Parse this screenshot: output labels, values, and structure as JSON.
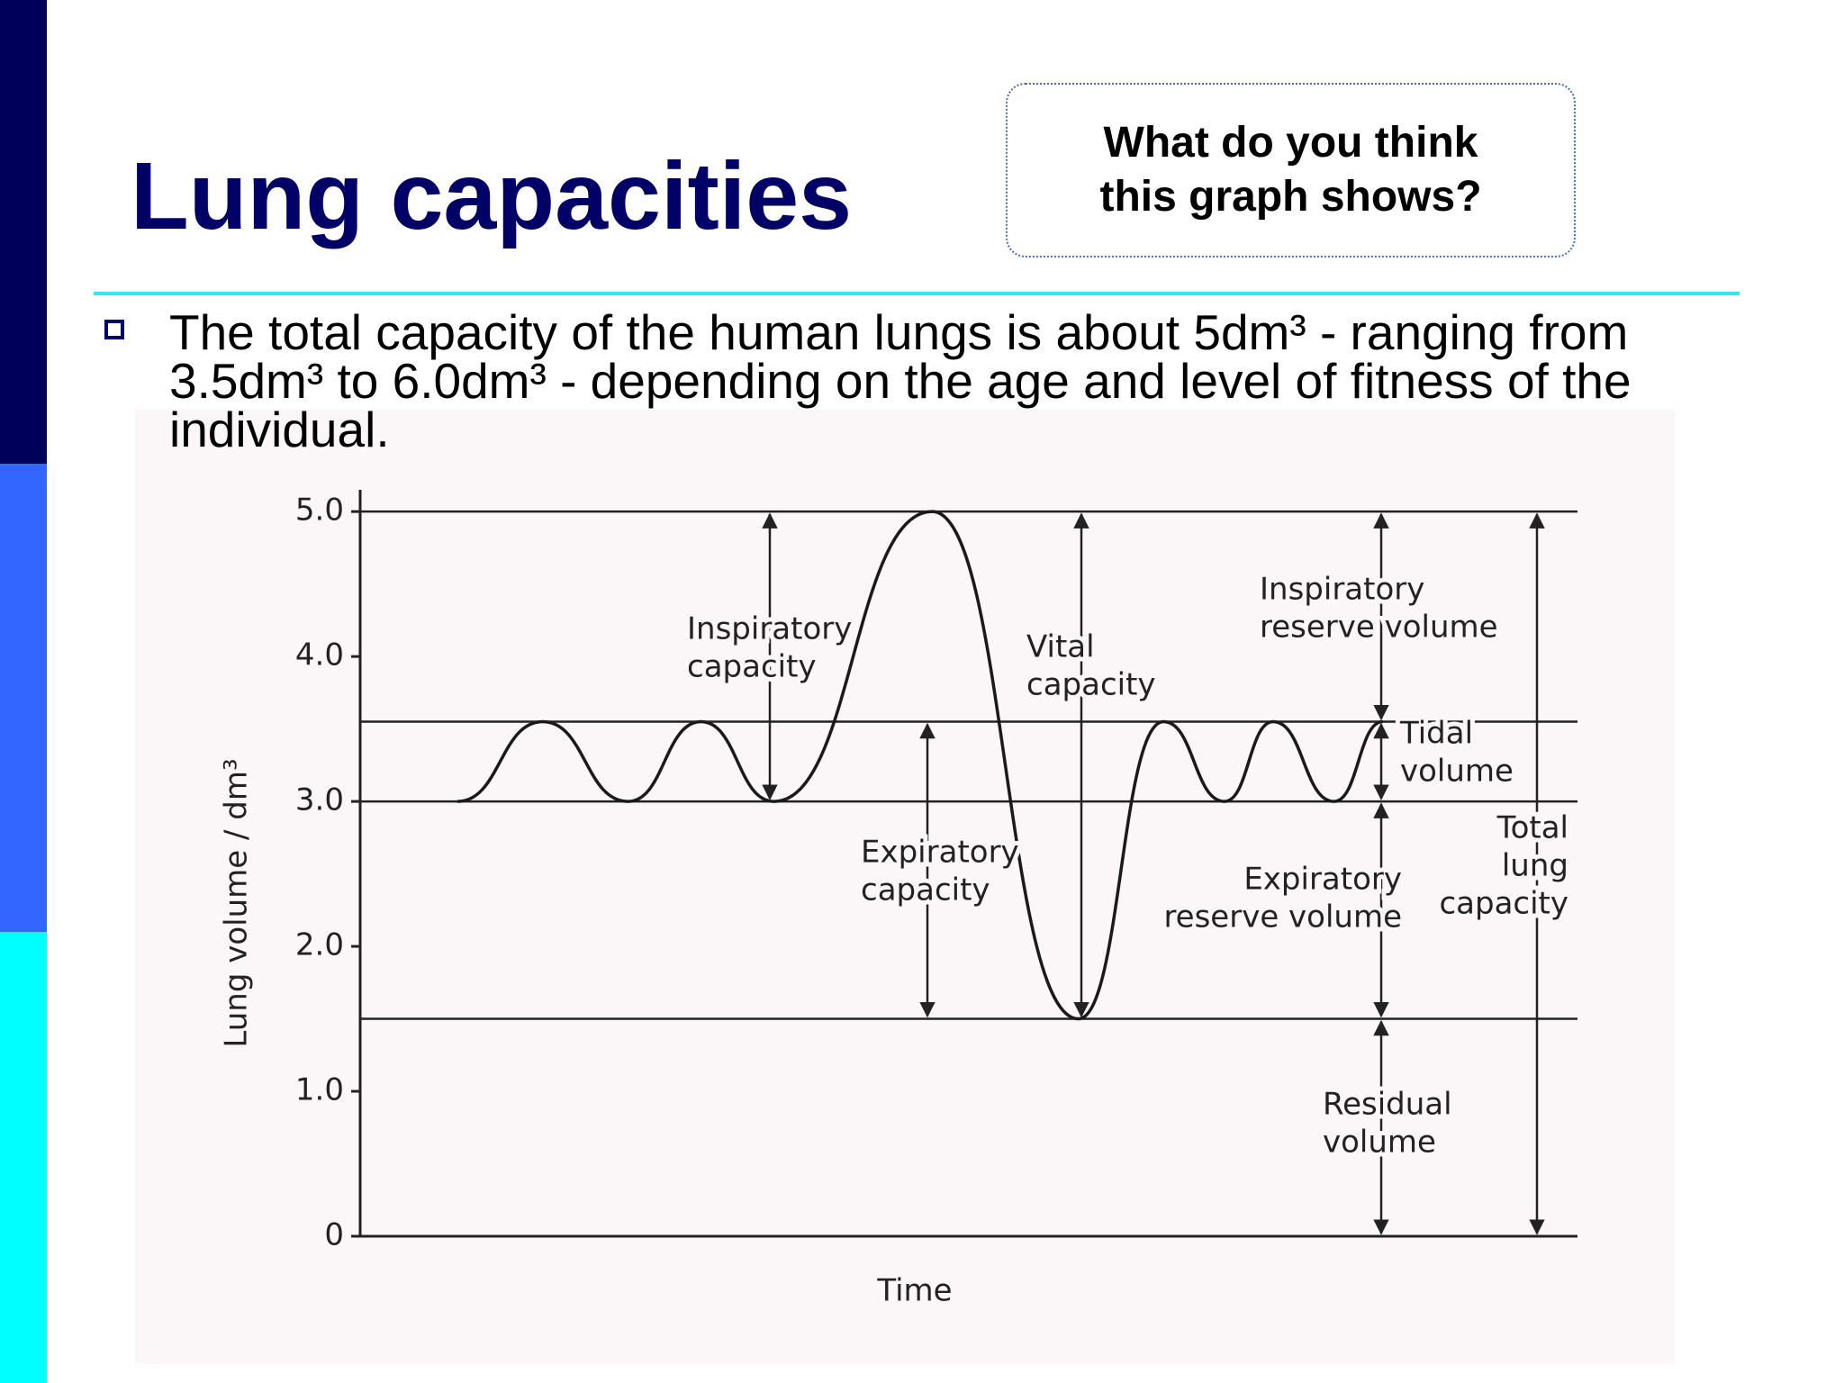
{
  "title": "Lung capacities",
  "callout": [
    "What do you think",
    "this graph shows?"
  ],
  "bullet": [
    "The total capacity of the human lungs is about 5dm³ - ranging from",
    "3.5dm³ to 6.0dm³ - depending on the age and level of fitness of the",
    "individual."
  ],
  "chart_data": {
    "type": "line",
    "x_label": "Time",
    "y_label": "Lung volume / dm³",
    "x": [
      8,
      15,
      22,
      28,
      34,
      47,
      59,
      66,
      71,
      75,
      80,
      84
    ],
    "values": [
      3.0,
      3.55,
      3.0,
      3.55,
      3.0,
      5.0,
      1.5,
      3.55,
      3.0,
      3.55,
      3.0,
      3.55
    ],
    "color": "#1a1a1a",
    "xlim": [
      0,
      100
    ],
    "ylim": [
      0,
      5.15
    ],
    "yticks": [
      {
        "value": 5,
        "label": "5.0"
      },
      {
        "value": 4,
        "label": "4.0"
      },
      {
        "value": 3,
        "label": "3.0"
      },
      {
        "value": 2,
        "label": "2.0"
      },
      {
        "value": 1,
        "label": "1.0"
      },
      0
    ],
    "reference_lines": [
      5.0,
      3.55,
      3.0,
      1.5
    ],
    "annotations": [
      {
        "lines": [
          "Inspiratory",
          "capacity"
        ]
      },
      {
        "lines": [
          "Vital",
          "capacity"
        ]
      },
      {
        "lines": [
          "Inspiratory",
          "reserve volume"
        ]
      },
      {
        "lines": [
          "Tidal",
          "volume"
        ]
      },
      {
        "lines": [
          "Expiratory",
          "capacity"
        ]
      },
      {
        "lines": [
          "Expiratory",
          "reserve volume"
        ]
      },
      {
        "lines": [
          "Total",
          "lung",
          "capacity"
        ]
      },
      {
        "lines": [
          "Residual",
          "volume"
        ]
      }
    ]
  }
}
